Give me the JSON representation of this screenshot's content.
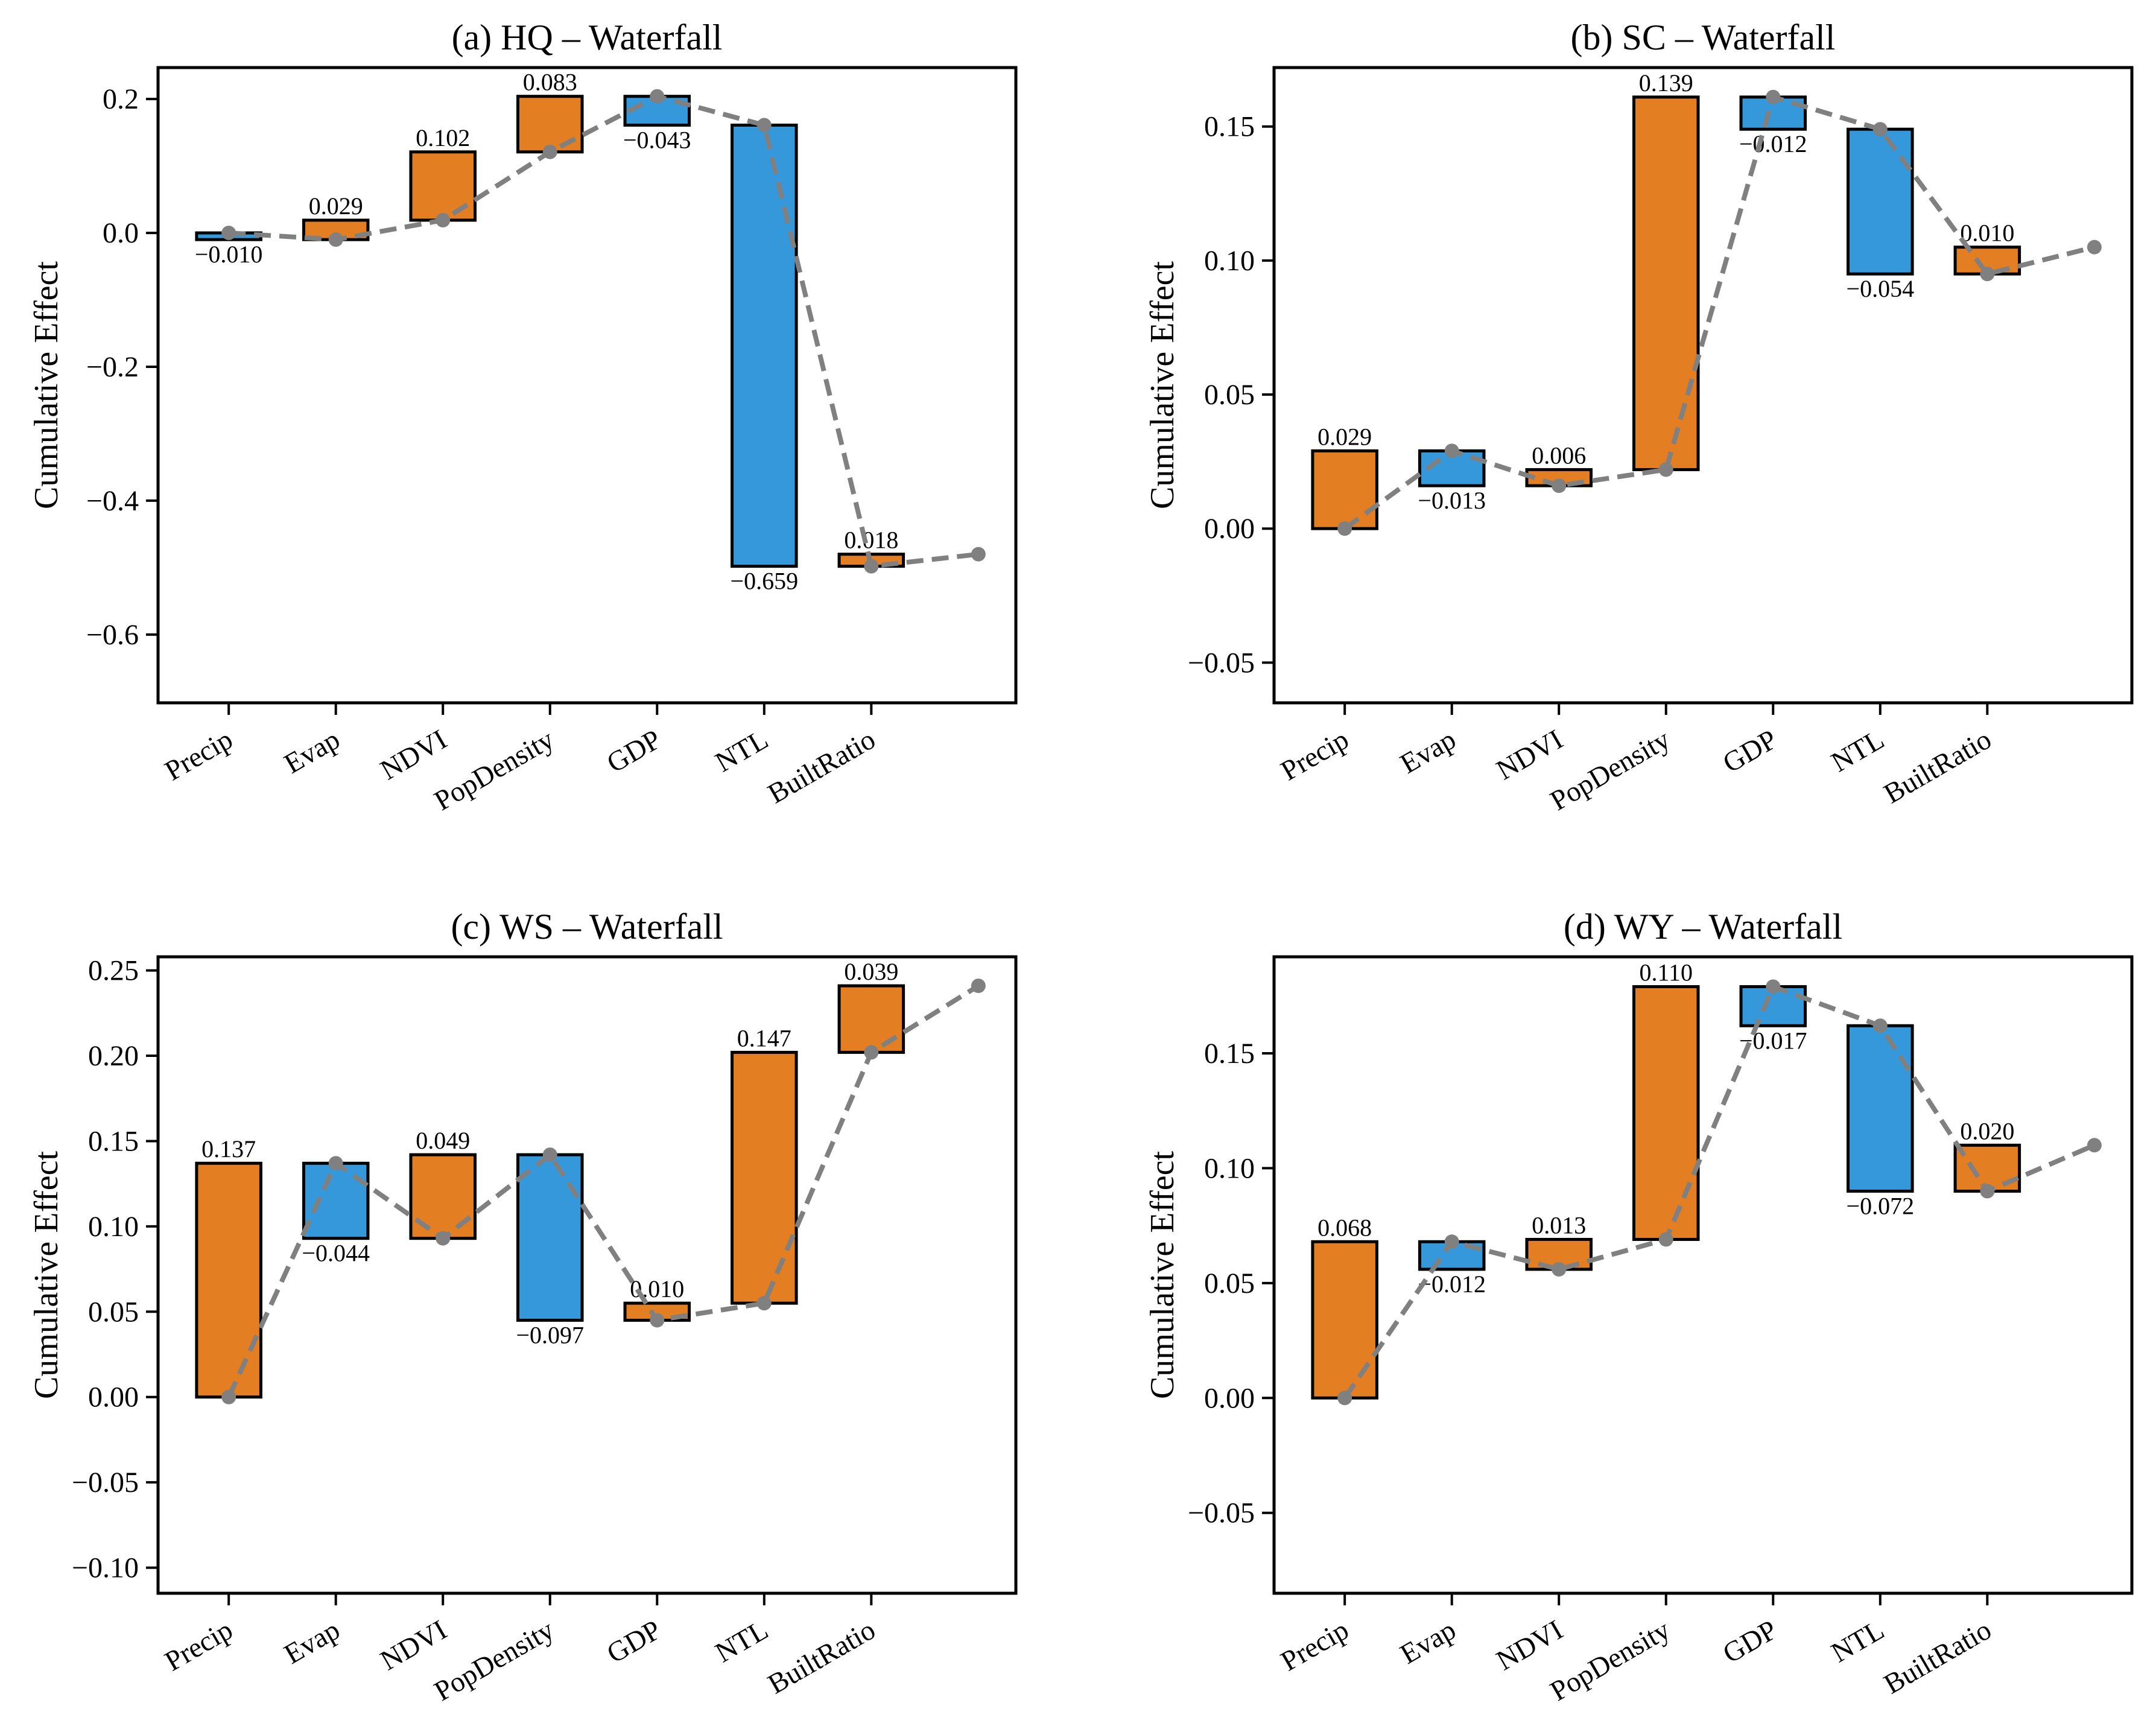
{
  "figure": {
    "colors": {
      "positive": "#E37E22",
      "negative": "#3498DB",
      "edge": "#000000",
      "cumulative_line": "#808080"
    }
  },
  "chart_data": [
    {
      "type": "bar",
      "subtype": "waterfall",
      "title": "(a) HQ – Waterfall",
      "xlabel": "",
      "ylabel": "Cumulative Effect",
      "categories": [
        "Precip",
        "Evap",
        "NDVI",
        "PopDensity",
        "GDP",
        "NTL",
        "BuiltRatio"
      ],
      "values": [
        -0.01,
        0.029,
        0.102,
        0.083,
        -0.043,
        -0.659,
        0.018
      ],
      "value_labels": [
        "−0.010",
        "0.029",
        "0.102",
        "0.083",
        "−0.043",
        "−0.659",
        "0.018"
      ],
      "cumulative_line": [
        0.0,
        -0.01,
        0.019,
        0.121,
        0.204,
        0.161,
        -0.498,
        -0.48
      ],
      "yticks": [
        0.2,
        0.0,
        -0.2,
        -0.4,
        -0.6
      ],
      "ytick_labels": [
        "0.2",
        "0.0",
        "−0.2",
        "−0.4",
        "−0.6"
      ],
      "ylim": [
        -0.702,
        0.247
      ],
      "xlim": [
        -0.66,
        7.35
      ],
      "grid": false,
      "legend": "none"
    },
    {
      "type": "bar",
      "subtype": "waterfall",
      "title": "(b) SC – Waterfall",
      "xlabel": "",
      "ylabel": "Cumulative Effect",
      "categories": [
        "Precip",
        "Evap",
        "NDVI",
        "PopDensity",
        "GDP",
        "NTL",
        "BuiltRatio"
      ],
      "values": [
        0.029,
        -0.013,
        0.006,
        0.139,
        -0.012,
        -0.054,
        0.01
      ],
      "value_labels": [
        "0.029",
        "−0.013",
        "0.006",
        "0.139",
        "−0.012",
        "−0.054",
        "0.010"
      ],
      "cumulative_line": [
        0.0,
        0.029,
        0.016,
        0.022,
        0.161,
        0.149,
        0.095,
        0.105
      ],
      "yticks": [
        0.15,
        0.1,
        0.05,
        0.0,
        -0.05
      ],
      "ytick_labels": [
        "0.15",
        "0.10",
        "0.05",
        "0.00",
        "−0.05"
      ],
      "ylim": [
        -0.065,
        0.172
      ],
      "xlim": [
        -0.66,
        7.35
      ],
      "grid": false,
      "legend": "none"
    },
    {
      "type": "bar",
      "subtype": "waterfall",
      "title": "(c) WS – Waterfall",
      "xlabel": "",
      "ylabel": "Cumulative Effect",
      "categories": [
        "Precip",
        "Evap",
        "NDVI",
        "PopDensity",
        "GDP",
        "NTL",
        "BuiltRatio"
      ],
      "values": [
        0.137,
        -0.044,
        0.049,
        -0.097,
        0.01,
        0.147,
        0.039
      ],
      "value_labels": [
        "0.137",
        "−0.044",
        "0.049",
        "−0.097",
        "0.010",
        "0.147",
        "0.039"
      ],
      "cumulative_line": [
        0.0,
        0.137,
        0.093,
        0.142,
        0.045,
        0.055,
        0.202,
        0.241
      ],
      "yticks": [
        0.25,
        0.2,
        0.15,
        0.1,
        0.05,
        0.0,
        -0.05,
        -0.1
      ],
      "ytick_labels": [
        "0.25",
        "0.20",
        "0.15",
        "0.10",
        "0.05",
        "0.00",
        "−0.05",
        "−0.10"
      ],
      "ylim": [
        -0.115,
        0.258
      ],
      "xlim": [
        -0.66,
        7.35
      ],
      "grid": false,
      "legend": "none"
    },
    {
      "type": "bar",
      "subtype": "waterfall",
      "title": "(d) WY – Waterfall",
      "xlabel": "",
      "ylabel": "Cumulative Effect",
      "categories": [
        "Precip",
        "Evap",
        "NDVI",
        "PopDensity",
        "GDP",
        "NTL",
        "BuiltRatio"
      ],
      "values": [
        0.068,
        -0.012,
        0.013,
        0.11,
        -0.017,
        -0.072,
        0.02
      ],
      "value_labels": [
        "0.068",
        "−0.012",
        "0.013",
        "0.110",
        "−0.017",
        "−0.072",
        "0.020"
      ],
      "cumulative_line": [
        0.0,
        0.068,
        0.056,
        0.069,
        0.179,
        0.162,
        0.09,
        0.11
      ],
      "yticks": [
        0.15,
        0.1,
        0.05,
        0.0,
        -0.05
      ],
      "ytick_labels": [
        "0.15",
        "0.10",
        "0.05",
        "0.00",
        "−0.05"
      ],
      "ylim": [
        -0.085,
        0.192
      ],
      "xlim": [
        -0.66,
        7.35
      ],
      "grid": false,
      "legend": "none"
    }
  ]
}
